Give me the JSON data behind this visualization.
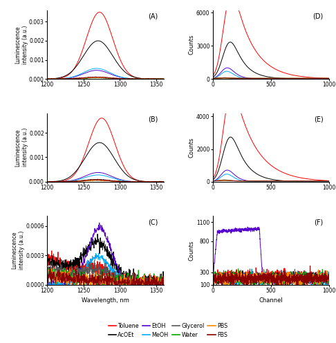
{
  "solvents": [
    "Toluene",
    "AcOEt",
    "EtOH",
    "MeOH",
    "Glycerol",
    "Water",
    "PBS",
    "FBS"
  ],
  "solvent_colors": {
    "Toluene": "#FF0000",
    "AcOEt": "#000000",
    "EtOH": "#5500CC",
    "MeOH": "#00AAFF",
    "Glycerol": "#555555",
    "Water": "#00AA00",
    "PBS": "#FF8800",
    "FBS": "#880000"
  },
  "panel_labels": [
    "(A)",
    "(D)",
    "(B)",
    "(E)",
    "(C)",
    "(F)"
  ],
  "ylabel_emission": "Luminescence\nintensity (a.u.)",
  "ylabel_decay": "Counts",
  "xlabel_emission": "Wavelength, nm",
  "xlabel_decay": "Channel",
  "xlim_emission": [
    1200,
    1360
  ],
  "xlim_decay": [
    0,
    1000
  ],
  "xticks_emission": [
    1200,
    1250,
    1300,
    1350
  ],
  "xticks_decay": [
    0,
    500,
    1000
  ],
  "ylim_A": [
    0,
    0.0036
  ],
  "yticks_A": [
    0,
    0.001,
    0.002,
    0.003
  ],
  "ylim_B": [
    0,
    0.0028
  ],
  "yticks_B": [
    0,
    0.001,
    0.002
  ],
  "ylim_C": [
    0,
    0.0007
  ],
  "yticks_C": [
    0,
    0.0003,
    0.0006
  ],
  "ylim_D": [
    0,
    6200
  ],
  "yticks_D": [
    0,
    3000,
    6000
  ],
  "ylim_E": [
    0,
    4200
  ],
  "yticks_E": [
    0,
    2000,
    4000
  ],
  "ylim_F": [
    100,
    1200
  ],
  "yticks_F": [
    100,
    300,
    800,
    1100
  ]
}
